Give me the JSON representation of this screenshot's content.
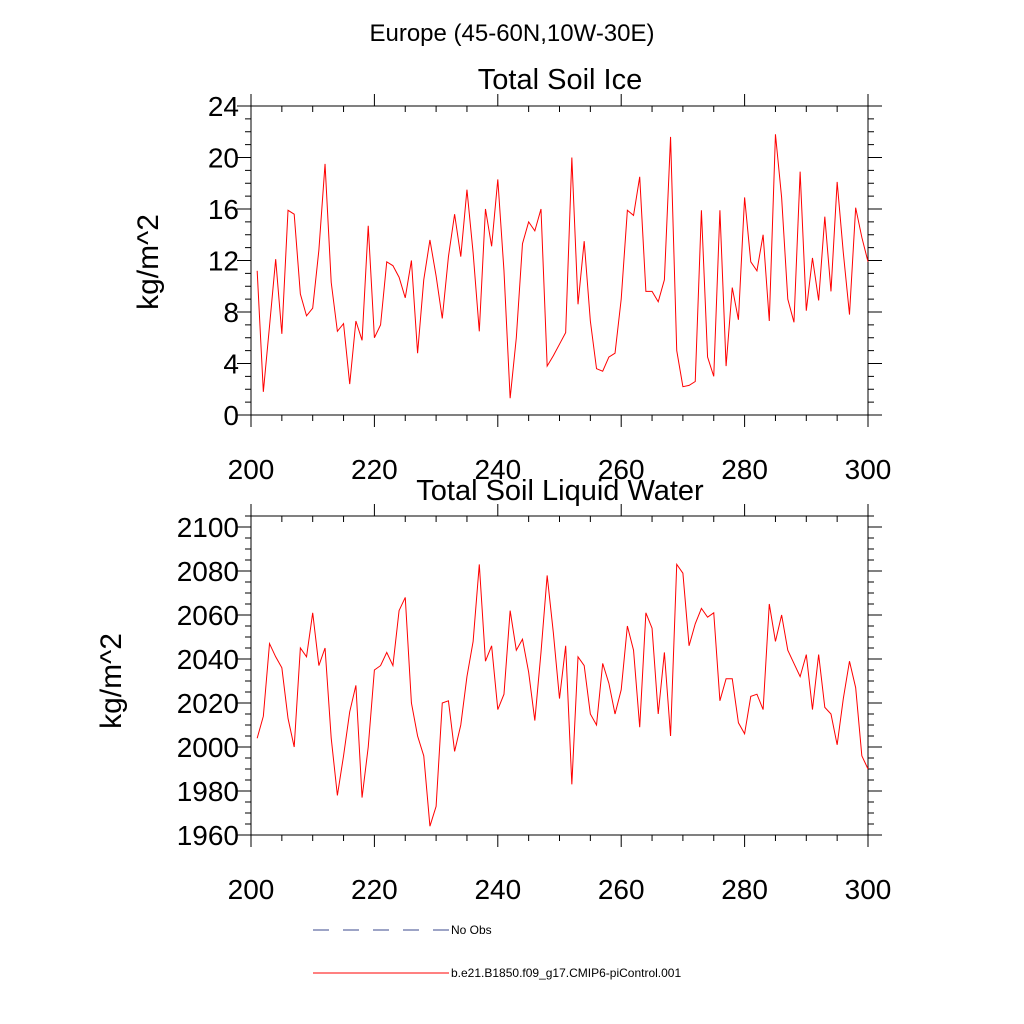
{
  "figure": {
    "suptitle": "Europe (45-60N,10W-30E)"
  },
  "legend": {
    "entries": [
      {
        "label": "No Obs",
        "color": "#3b4a8c",
        "style": "dashed"
      },
      {
        "label": "b.e21.B1850.f09_g17.CMIP6-piControl.001",
        "color": "#ff0000",
        "style": "solid"
      }
    ]
  },
  "chart_data": [
    {
      "type": "line",
      "title": "Total Soil Ice",
      "xlabel": "",
      "ylabel": "kg/m^2",
      "xlim": [
        200,
        300
      ],
      "ylim": [
        0,
        24
      ],
      "xticks": [
        200,
        220,
        240,
        260,
        280,
        300
      ],
      "xtick_labels": [
        "200",
        "220",
        "240",
        "260",
        "280",
        "300"
      ],
      "yticks": [
        0,
        4,
        8,
        12,
        16,
        20,
        24
      ],
      "ytick_labels": [
        "0",
        "4",
        "8",
        "12",
        "16",
        "20",
        "24"
      ],
      "xminor_step": 5,
      "yminor_step": 1,
      "grid": false,
      "series": [
        {
          "name": "b.e21.B1850.f09_g17.CMIP6-piControl.001",
          "color": "#ff0000",
          "x": [
            201,
            202,
            203,
            204,
            205,
            206,
            207,
            208,
            209,
            210,
            211,
            212,
            213,
            214,
            215,
            216,
            217,
            218,
            219,
            220,
            221,
            222,
            223,
            224,
            225,
            226,
            227,
            228,
            229,
            230,
            231,
            232,
            233,
            234,
            235,
            236,
            237,
            238,
            239,
            240,
            241,
            242,
            243,
            244,
            245,
            246,
            247,
            248,
            249,
            250,
            251,
            252,
            253,
            254,
            255,
            256,
            257,
            258,
            259,
            260,
            261,
            262,
            263,
            264,
            265,
            266,
            267,
            268,
            269,
            270,
            271,
            272,
            273,
            274,
            275,
            276,
            277,
            278,
            279,
            280,
            281,
            282,
            283,
            284,
            285,
            286,
            287,
            288,
            289,
            290,
            291,
            292,
            293,
            294,
            295,
            296,
            297,
            298,
            299,
            300
          ],
          "values": [
            11.2,
            1.8,
            6.9,
            12.1,
            6.3,
            15.9,
            15.6,
            9.4,
            7.7,
            8.3,
            12.8,
            19.5,
            10.3,
            6.5,
            7.1,
            2.4,
            7.3,
            5.8,
            14.7,
            6.0,
            7.0,
            11.9,
            11.6,
            10.7,
            9.1,
            12.0,
            4.8,
            10.5,
            13.6,
            10.8,
            7.5,
            12.3,
            15.6,
            12.3,
            17.5,
            12.6,
            6.5,
            16.0,
            13.1,
            18.3,
            11.2,
            1.3,
            6.0,
            13.3,
            15.0,
            14.3,
            16.0,
            3.8,
            4.6,
            5.5,
            6.4,
            20.0,
            8.6,
            13.5,
            7.3,
            3.6,
            3.4,
            4.5,
            4.8,
            9.0,
            15.9,
            15.5,
            18.5,
            9.6,
            9.6,
            8.8,
            10.5,
            21.6,
            5.0,
            2.2,
            2.3,
            2.6,
            15.9,
            4.5,
            3.0,
            15.9,
            3.8,
            9.9,
            7.4,
            16.9,
            11.9,
            11.2,
            14.0,
            7.3,
            21.8,
            16.9,
            9.0,
            7.2,
            18.9,
            8.1,
            12.2,
            8.9,
            15.4,
            9.6,
            18.1,
            12.6,
            7.8,
            16.1,
            13.8,
            11.9
          ]
        }
      ]
    },
    {
      "type": "line",
      "title": "Total Soil Liquid Water",
      "xlabel": "",
      "ylabel": "kg/m^2",
      "xlim": [
        200,
        300
      ],
      "ylim": [
        1960,
        2105
      ],
      "xticks": [
        200,
        220,
        240,
        260,
        280,
        300
      ],
      "xtick_labels": [
        "200",
        "220",
        "240",
        "260",
        "280",
        "300"
      ],
      "yticks": [
        1960,
        1980,
        2000,
        2020,
        2040,
        2060,
        2080,
        2100
      ],
      "ytick_labels": [
        "1960",
        "1980",
        "2000",
        "2020",
        "2040",
        "2060",
        "2080",
        "2100"
      ],
      "xminor_step": 5,
      "yminor_step": 5,
      "grid": false,
      "series": [
        {
          "name": "b.e21.B1850.f09_g17.CMIP6-piControl.001",
          "color": "#ff0000",
          "x": [
            201,
            202,
            203,
            204,
            205,
            206,
            207,
            208,
            209,
            210,
            211,
            212,
            213,
            214,
            215,
            216,
            217,
            218,
            219,
            220,
            221,
            222,
            223,
            224,
            225,
            226,
            227,
            228,
            229,
            230,
            231,
            232,
            233,
            234,
            235,
            236,
            237,
            238,
            239,
            240,
            241,
            242,
            243,
            244,
            245,
            246,
            247,
            248,
            249,
            250,
            251,
            252,
            253,
            254,
            255,
            256,
            257,
            258,
            259,
            260,
            261,
            262,
            263,
            264,
            265,
            266,
            267,
            268,
            269,
            270,
            271,
            272,
            273,
            274,
            275,
            276,
            277,
            278,
            279,
            280,
            281,
            282,
            283,
            284,
            285,
            286,
            287,
            288,
            289,
            290,
            291,
            292,
            293,
            294,
            295,
            296,
            297,
            298,
            299,
            300
          ],
          "values": [
            2004,
            2014,
            2047,
            2041,
            2036,
            2013,
            2000,
            2045,
            2041,
            2061,
            2037,
            2045,
            2004,
            1978,
            1996,
            2016,
            2028,
            1977,
            2000,
            2035,
            2037,
            2043,
            2037,
            2062,
            2068,
            2020,
            2005,
            1996,
            1964,
            1973,
            2020,
            2021,
            1998,
            2010,
            2032,
            2048,
            2083,
            2039,
            2046,
            2017,
            2024,
            2062,
            2044,
            2049,
            2034,
            2012,
            2043,
            2078,
            2052,
            2022,
            2046,
            1983,
            2041,
            2037,
            2015,
            2010,
            2038,
            2029,
            2015,
            2026,
            2055,
            2044,
            2009,
            2061,
            2054,
            2015,
            2043,
            2005,
            2083,
            2079,
            2046,
            2056,
            2063,
            2059,
            2061,
            2021,
            2031,
            2031,
            2011,
            2006,
            2023,
            2024,
            2017,
            2065,
            2048,
            2060,
            2044,
            2038,
            2032,
            2042,
            2017,
            2042,
            2018,
            2015,
            2001,
            2022,
            2039,
            2027,
            1996,
            1990
          ]
        }
      ]
    }
  ]
}
